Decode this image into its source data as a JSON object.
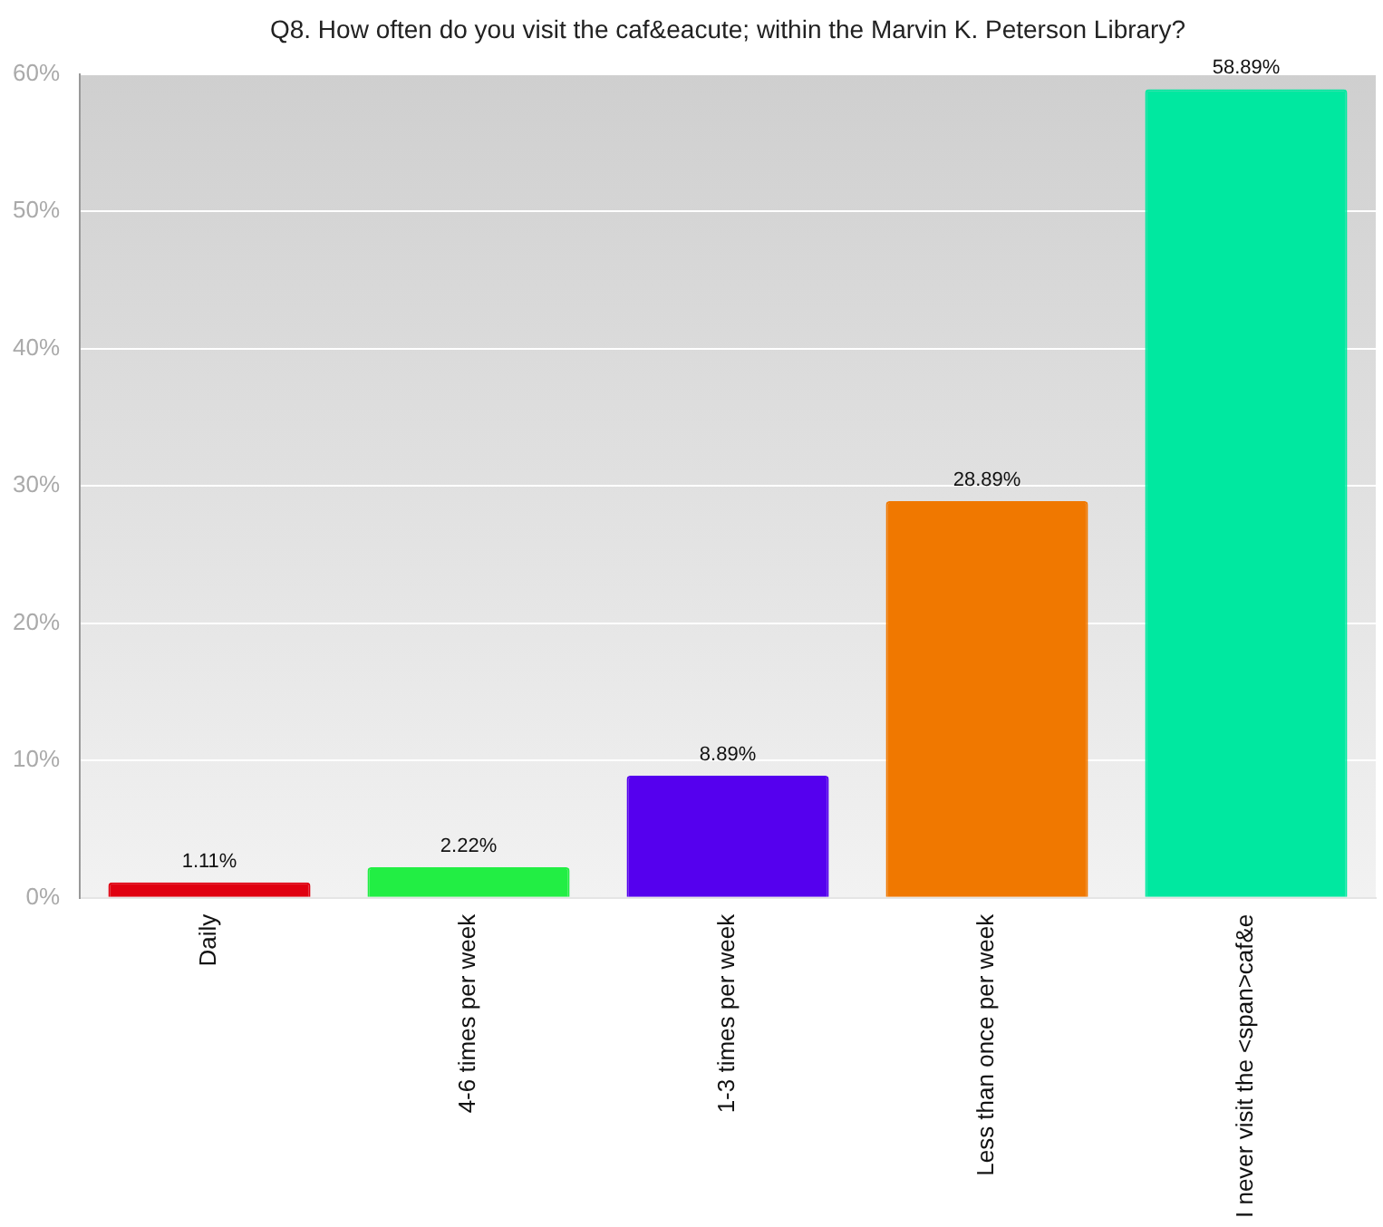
{
  "chart_data": {
    "type": "bar",
    "title": "Q8. How often do you visit the caf&eacute; within the Marvin K. Peterson Library?",
    "categories": [
      "Daily",
      "4-6 times per week",
      "1-3 times per week",
      "Less than once per week",
      "I never visit the <span>caf&e"
    ],
    "values": [
      1.11,
      2.22,
      8.89,
      28.89,
      58.89
    ],
    "colors": [
      "#e00010",
      "#22ee44",
      "#5500ee",
      "#f07800",
      "#00e8a0"
    ],
    "value_labels": [
      "1.11%",
      "2.22%",
      "8.89%",
      "28.89%",
      "58.89%"
    ],
    "ylim": [
      0,
      60
    ],
    "yticks": [
      {
        "value": 0,
        "label": "0%"
      },
      {
        "value": 10,
        "label": "10%"
      },
      {
        "value": 20,
        "label": "20%"
      },
      {
        "value": 30,
        "label": "30%"
      },
      {
        "value": 40,
        "label": "40%"
      },
      {
        "value": 50,
        "label": "50%"
      },
      {
        "value": 60,
        "label": "60%"
      }
    ],
    "grid": "y",
    "legend": false
  }
}
